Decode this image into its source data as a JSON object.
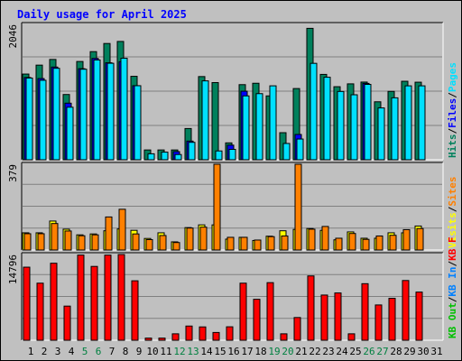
{
  "title": "Daily usage for April 2025",
  "colors": {
    "hits": "#00805c",
    "files": "#0000ff",
    "pages": "#00e0ff",
    "visits": "#ffff00",
    "sites": "#ff8000",
    "kbf": "#ff0000",
    "kbin": "#0080ff",
    "kbout": "#00c000",
    "weekend": "#008040",
    "weekday": "#000000"
  },
  "chart_data": [
    {
      "type": "bar",
      "panel": "hits-files-pages",
      "categories": [
        "1",
        "2",
        "3",
        "4",
        "5",
        "6",
        "7",
        "8",
        "9",
        "10",
        "11",
        "12",
        "13",
        "14",
        "15",
        "16",
        "17",
        "18",
        "19",
        "20",
        "21",
        "22",
        "23",
        "24",
        "25",
        "26",
        "27",
        "28",
        "29",
        "30",
        "31"
      ],
      "weekend_days": [
        "5",
        "6",
        "12",
        "13",
        "19",
        "20",
        "26",
        "27"
      ],
      "y_max_label": "2046",
      "ylim": [
        0,
        2046
      ],
      "side_labels": [
        {
          "text": "Hits",
          "color": "#00805c"
        },
        {
          "text": "Files",
          "color": "#0000ff"
        },
        {
          "text": "Pages",
          "color": "#00e0ff"
        }
      ],
      "separator": "/",
      "series": [
        {
          "name": "Hits",
          "color": "#00805c",
          "values": [
            1295,
            1430,
            1516,
            986,
            1485,
            1634,
            1757,
            1788,
            1261,
            148,
            148,
            148,
            472,
            1257,
            1166,
            255,
            1135,
            1156,
            965,
            409,
            1076,
            1986,
            1290,
            1104,
            1147,
            1174,
            876,
            1033,
            1186,
            1172,
            0
          ]
        },
        {
          "name": "Files",
          "color": "#0000ff",
          "values": [
            1243,
            1227,
            1401,
            855,
            1376,
            1531,
            1465,
            1482,
            1119,
            0,
            0,
            123,
            282,
            0,
            0,
            221,
            1036,
            0,
            0,
            0,
            382,
            0,
            0,
            0,
            0,
            1154,
            0,
            0,
            0,
            0,
            0
          ]
        },
        {
          "name": "Pages",
          "color": "#00e0ff",
          "values": [
            1235,
            1201,
            1382,
            794,
            1368,
            1508,
            1458,
            1534,
            1119,
            90,
            115,
            79,
            263,
            1192,
            133,
            157,
            965,
            999,
            1117,
            246,
            313,
            1457,
            1247,
            1032,
            982,
            1139,
            783,
            936,
            1117,
            1117,
            0
          ]
        }
      ]
    },
    {
      "type": "bar",
      "panel": "visits-sites",
      "categories": [
        "1",
        "2",
        "3",
        "4",
        "5",
        "6",
        "7",
        "8",
        "9",
        "10",
        "11",
        "12",
        "13",
        "14",
        "15",
        "16",
        "17",
        "18",
        "19",
        "20",
        "21",
        "22",
        "23",
        "24",
        "25",
        "26",
        "27",
        "28",
        "29",
        "30",
        "31"
      ],
      "y_max_label": "379",
      "ylim": [
        0,
        379
      ],
      "side_labels": [
        {
          "text": "Visits",
          "color": "#ffff00"
        },
        {
          "text": "Sites",
          "color": "#ff8000"
        }
      ],
      "separator": "/",
      "series": [
        {
          "name": "Visits",
          "color": "#ffff00",
          "values": [
            76,
            76,
            128,
            92,
            67,
            71,
            85,
            93,
            87,
            51,
            76,
            36,
            99,
            111,
            111,
            48,
            56,
            42,
            61,
            85,
            91,
            95,
            87,
            45,
            80,
            52,
            52,
            76,
            76,
            106,
            0
          ]
        },
        {
          "name": "Sites",
          "color": "#ff8000",
          "values": [
            72,
            72,
            117,
            84,
            63,
            67,
            146,
            180,
            71,
            46,
            64,
            33,
            97,
            101,
            379,
            56,
            56,
            44,
            59,
            62,
            379,
            92,
            104,
            52,
            73,
            47,
            62,
            65,
            90,
            95,
            0
          ]
        }
      ]
    },
    {
      "type": "bar",
      "panel": "kbytes",
      "categories": [
        "1",
        "2",
        "3",
        "4",
        "5",
        "6",
        "7",
        "8",
        "9",
        "10",
        "11",
        "12",
        "13",
        "14",
        "15",
        "16",
        "17",
        "18",
        "19",
        "20",
        "21",
        "22",
        "23",
        "24",
        "25",
        "26",
        "27",
        "28",
        "29",
        "30",
        "31"
      ],
      "y_max_label": "14796",
      "ylim": [
        0,
        14796
      ],
      "side_labels": [
        {
          "text": "KB Out",
          "color": "#00c000"
        },
        {
          "text": "KB In",
          "color": "#0080ff"
        },
        {
          "text": "KB F",
          "color": "#ff0000"
        }
      ],
      "separator": "/",
      "series": [
        {
          "name": "KB F",
          "color": "#ff0000",
          "values": [
            12610,
            9850,
            13290,
            5890,
            14700,
            12740,
            14690,
            14790,
            10260,
            370,
            370,
            1110,
            2450,
            2300,
            1340,
            2320,
            9850,
            7070,
            9940,
            1110,
            3920,
            11100,
            7800,
            8160,
            1110,
            9760,
            6090,
            7240,
            10310,
            8310,
            0
          ]
        }
      ]
    }
  ]
}
